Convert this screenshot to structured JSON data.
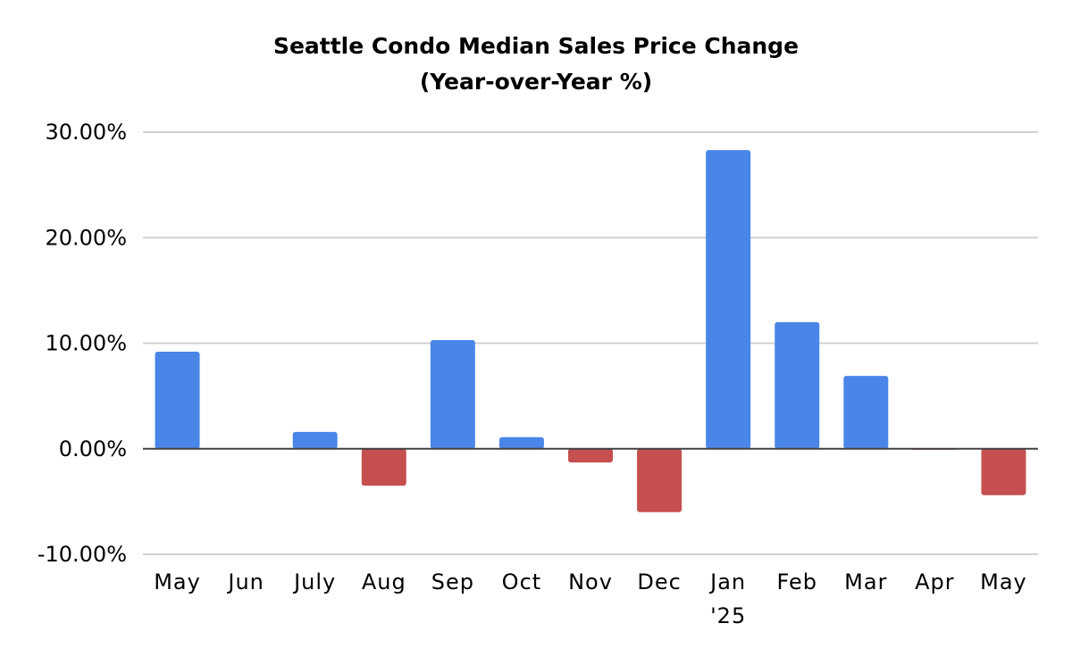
{
  "chart_data": {
    "type": "bar",
    "title_lines": [
      "Seattle Condo Median Sales Price Change",
      "(Year-over-Year %)"
    ],
    "categories": [
      [
        "May"
      ],
      [
        "Jun"
      ],
      [
        "July"
      ],
      [
        "Aug"
      ],
      [
        "Sep"
      ],
      [
        "Oct"
      ],
      [
        "Nov"
      ],
      [
        "Dec"
      ],
      [
        "Jan",
        "'25"
      ],
      [
        "Feb"
      ],
      [
        "Mar"
      ],
      [
        "Apr"
      ],
      [
        "May"
      ]
    ],
    "values": [
      9.2,
      0.0,
      1.6,
      -3.5,
      10.3,
      1.1,
      -1.3,
      -6.0,
      28.3,
      12.0,
      6.9,
      -0.1,
      -4.4
    ],
    "yticks": [
      "30.00%",
      "20.00%",
      "10.00%",
      "0.00%",
      "-10.00%"
    ],
    "ytick_values": [
      30,
      20,
      10,
      0,
      -10
    ],
    "ylim": [
      -10,
      30
    ],
    "grid": true,
    "legend": false,
    "colors": {
      "positive": "#4a86e8",
      "negative": "#c5504f",
      "grid": "#d0d0d0",
      "zero_axis": "#404040"
    }
  }
}
